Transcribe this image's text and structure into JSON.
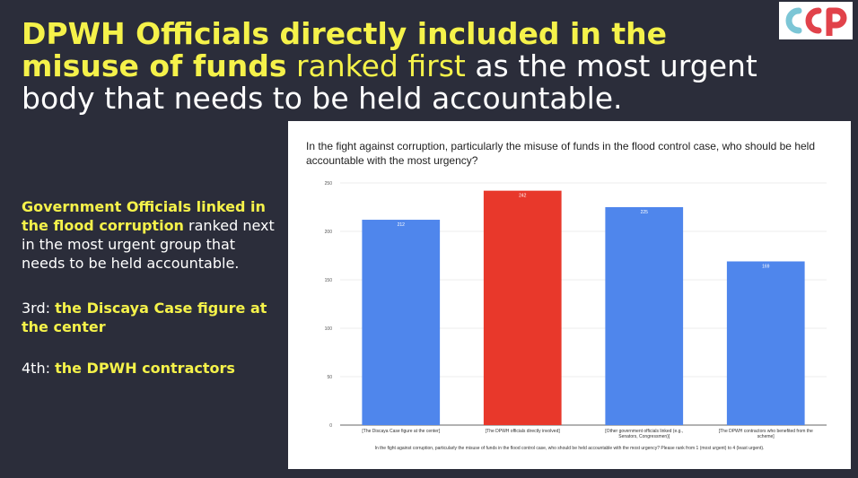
{
  "headline": {
    "part1": "DPWH Officials directly included in the misuse of funds",
    "part2": " ranked first",
    "part3": " as the most urgent body that needs to be held accountable."
  },
  "side": {
    "p1_bold": "Government Officials linked in the flood corruption",
    "p1_rest": " ranked next in the most urgent group that needs to be held accountable.",
    "third_prefix": "3rd: ",
    "third_value": "the Discaya Case figure at the center",
    "fourth_prefix": "4th: ",
    "fourth_value": "the DPWH contractors"
  },
  "colors": {
    "background": "#2b2d3a",
    "accent_yellow": "#f5f24a",
    "bar_blue": "#4f86ec",
    "bar_red": "#e8382b"
  },
  "chart_data": {
    "type": "bar",
    "title": "In the fight against corruption, particularly the misuse of funds in the flood control case, who should be held accountable with the most urgency?",
    "xlabel": "In the fight against corruption, particularly the misuse of funds in the flood control case, who should be held accountable with the most urgency? Please rank from 1 (most urgent) to 4 (least urgent).",
    "ylabel": "",
    "categories": [
      "[The Discaya Case figure at the center]",
      "[The DPWH officials directly involved]",
      "[Other government officials linked (e.g., Senators, Congressmen)]",
      "[The DPWH contractors who benefited from the scheme]"
    ],
    "values": [
      212,
      242,
      225,
      169
    ],
    "bar_colors": [
      "#4f86ec",
      "#e8382b",
      "#4f86ec",
      "#4f86ec"
    ],
    "ylim": [
      0,
      250
    ],
    "yticks": [
      0,
      50,
      100,
      150,
      200,
      250
    ],
    "grid": true,
    "legend": "none"
  }
}
